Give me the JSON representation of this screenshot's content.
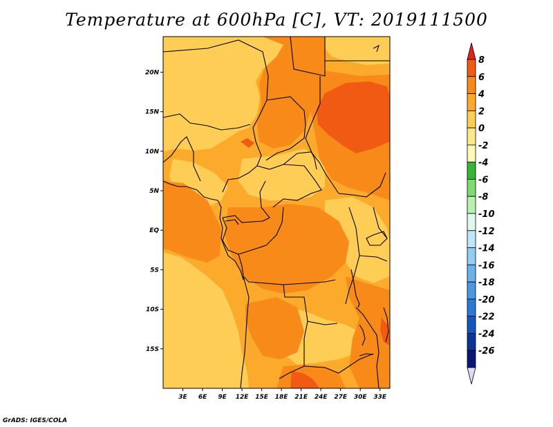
{
  "title": "Temperature at 600hPa [C], VT: 2019111500",
  "credit": "GrADS: IGES/COLA",
  "map": {
    "lat_labels": [
      "20N",
      "15N",
      "10N",
      "5N",
      "EQ",
      "5S",
      "10S",
      "15S"
    ],
    "lat_values": [
      20,
      15,
      10,
      5,
      0,
      -5,
      -10,
      -15
    ],
    "lon_labels": [
      "3E",
      "6E",
      "9E",
      "12E",
      "15E",
      "18E",
      "21E",
      "24E",
      "27E",
      "30E",
      "33E"
    ],
    "lon_values": [
      3,
      6,
      9,
      12,
      15,
      18,
      21,
      24,
      27,
      30,
      33
    ],
    "lon_range": [
      0,
      34.5
    ],
    "lat_range": [
      -20,
      24.5
    ]
  },
  "colorbar": {
    "labels": [
      "8",
      "6",
      "4",
      "2",
      "0",
      "-2",
      "-4",
      "-6",
      "-8",
      "-10",
      "-12",
      "-14",
      "-16",
      "-18",
      "-20",
      "-22",
      "-24",
      "-26"
    ],
    "colors": [
      "#e0261b",
      "#f15a13",
      "#f88a1a",
      "#fbaa2c",
      "#fdcd55",
      "#ffe88b",
      "#fff9b8",
      "#36b637",
      "#7ddc6f",
      "#b8f1ad",
      "#e1f9ec",
      "#bde6f8",
      "#92cdf3",
      "#6bb1ec",
      "#4898e2",
      "#2a7ad6",
      "#1558bd",
      "#0a3698",
      "#0b1776",
      "#dcdcf4"
    ],
    "colors_note": "top to bottom: upper arrow, bands, lower arrow"
  },
  "colors": {
    "base": "#fbaa2c",
    "light": "#fdcd55",
    "warm": "#f88a1a",
    "hot": "#f15a13",
    "border": "#000000"
  }
}
